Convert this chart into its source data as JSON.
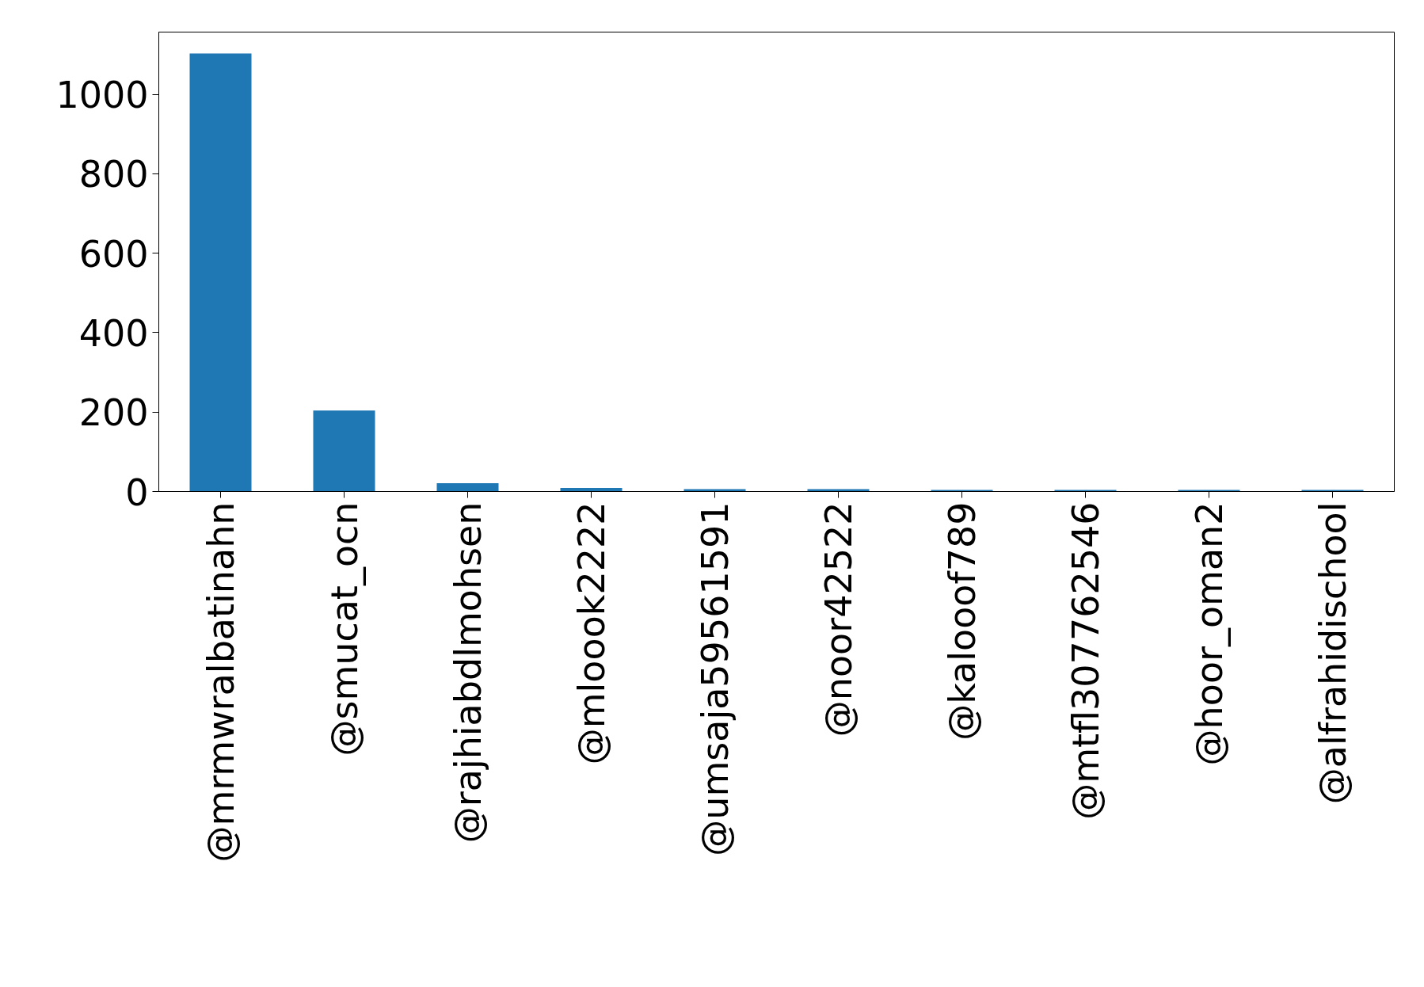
{
  "chart_data": {
    "type": "bar",
    "categories": [
      "@mrmwralbatinahn",
      "@smucat_ocn",
      "@rajhiabdlmohsen",
      "@mloook2222",
      "@umsaja59561591",
      "@noor42522",
      "@kalooof789",
      "@mtfl307762546",
      "@hoor_oman2",
      "@alfrahidischool"
    ],
    "values": [
      1103,
      204,
      21,
      9,
      6,
      6,
      4,
      4,
      4,
      4
    ],
    "color": "#1f77b4",
    "ylim": [
      0,
      1157
    ],
    "yticks": [
      0,
      200,
      400,
      600,
      800,
      1000
    ],
    "grid": false
  }
}
